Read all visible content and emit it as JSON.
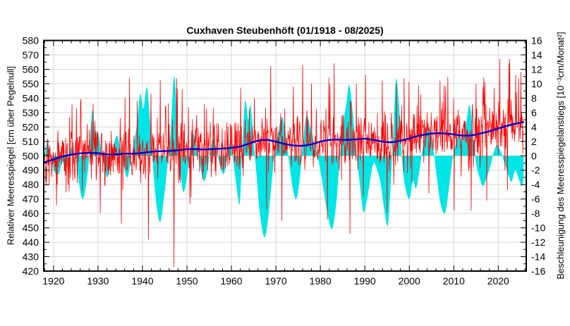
{
  "title": "Cuxhaven Steubenhöft (01/1918 - 08/2025)",
  "colors": {
    "background": "#ffffff",
    "text": "#000000",
    "frame": "#000000",
    "grid": "#d6d6d6",
    "monthly_sea_level": "#ff0000",
    "acceleration_fill": "#00e5e5",
    "trend_line": "#0000cc"
  },
  "chart_data": {
    "type": "line",
    "title": "Cuxhaven Steubenhöft (01/1918 - 08/2025)",
    "grid": true,
    "legend": "none",
    "x_axis": {
      "label": "",
      "range": [
        1917.8,
        2026.3
      ],
      "major_tick_values": [
        1920,
        1930,
        1940,
        1950,
        1960,
        1970,
        1980,
        1990,
        2000,
        2010,
        2020
      ],
      "major_tick_labels": [
        "1920",
        "1930",
        "1940",
        "1950",
        "1960",
        "1970",
        "1980",
        "1990",
        "2000",
        "2010",
        "2020"
      ],
      "minor_tick_step": 2
    },
    "y_left": {
      "label": "Relativer Meeresspiegel [cm über Pegelnull]",
      "range": [
        420,
        580
      ],
      "major_tick_step": 10,
      "minor_tick_step": 5,
      "major_tick_values": [
        420,
        430,
        440,
        450,
        460,
        470,
        480,
        490,
        500,
        510,
        520,
        530,
        540,
        550,
        560,
        570,
        580
      ],
      "major_tick_labels": [
        "420",
        "430",
        "440",
        "450",
        "460",
        "470",
        "480",
        "490",
        "500",
        "510",
        "520",
        "530",
        "540",
        "550",
        "560",
        "570",
        "580"
      ]
    },
    "y_right": {
      "label": "Beschleunigung des Meeresspiegelanstiegs [10⁻³cm/Monat²]",
      "range": [
        -16,
        16
      ],
      "major_tick_step": 2,
      "minor_tick_step": 1,
      "major_tick_values": [
        -16,
        -14,
        -12,
        -10,
        -8,
        -6,
        -4,
        -2,
        0,
        2,
        4,
        6,
        8,
        10,
        12,
        14,
        16
      ],
      "major_tick_labels": [
        "-16",
        "-14",
        "-12",
        "-10",
        "-8",
        "-6",
        "-4",
        "-2",
        "0",
        "2",
        "4",
        "6",
        "8",
        "10",
        "12",
        "14",
        "16"
      ]
    },
    "series": [
      {
        "name": "relative-sea-level-monthly",
        "description": "Monthly mean relative sea level 01/1918 - 08/2025 (noisy red curve)",
        "axis": "left",
        "style": "line",
        "color": "#ff0000",
        "stroke_width": 0.8,
        "generator": {
          "start_year": 1918,
          "months": 1292,
          "seed": 1947,
          "seasonal_amplitude": 4,
          "seasonal_peak_month": 0,
          "noise_sd": 8.5,
          "storm_high_prob": 0.07,
          "storm_high_scale": 13,
          "storm_low_prob": 0.06,
          "storm_low_scale": 12,
          "min": 422.5,
          "max": 567
        },
        "observed_extremes": [
          [
            1926.1,
            537
          ],
          [
            1928.9,
            536
          ],
          [
            1936.1,
            540
          ],
          [
            1938.8,
            538
          ],
          [
            1941.3,
            442
          ],
          [
            1941.9,
            543
          ],
          [
            1947.1,
            423
          ],
          [
            1948.9,
            546
          ],
          [
            1953.9,
            536
          ],
          [
            1955.9,
            533
          ],
          [
            1962.1,
            547
          ],
          [
            1965.2,
            540
          ],
          [
            1967.9,
            463
          ],
          [
            1971.3,
            455
          ],
          [
            1973.9,
            548
          ],
          [
            1976.0,
            563
          ],
          [
            1978.0,
            550
          ],
          [
            1981.9,
            554
          ],
          [
            1983.1,
            564
          ],
          [
            1986.7,
            446
          ],
          [
            1988.1,
            550
          ],
          [
            1990.2,
            556
          ],
          [
            1993.9,
            552
          ],
          [
            1995.0,
            461
          ],
          [
            1999.9,
            551
          ],
          [
            2002.1,
            549
          ],
          [
            2004.4,
            474
          ],
          [
            2006.9,
            552
          ],
          [
            2008.2,
            548
          ],
          [
            2010.1,
            462
          ],
          [
            2013.9,
            462
          ],
          [
            2015.0,
            550
          ],
          [
            2017.0,
            551
          ],
          [
            2019.1,
            547
          ],
          [
            2020.3,
            567
          ],
          [
            2022.4,
            564
          ],
          [
            2023.9,
            556
          ],
          [
            2025.1,
            558
          ]
        ]
      },
      {
        "name": "sea-level-rise-acceleration",
        "description": "Acceleration of sea level rise (cyan filled area, right axis, 10^-3 cm/month^2)",
        "axis": "right",
        "style": "area",
        "color": "#00e5e5",
        "baseline": 0,
        "points": [
          [
            1918.0,
            0.3
          ],
          [
            1918.6,
            1.9
          ],
          [
            1919.3,
            0.2
          ],
          [
            1920.2,
            -2.2
          ],
          [
            1921.2,
            -2.5
          ],
          [
            1922.0,
            -0.8
          ],
          [
            1922.8,
            -2.0
          ],
          [
            1923.6,
            0.4
          ],
          [
            1924.3,
            1.2
          ],
          [
            1925.0,
            -0.5
          ],
          [
            1925.8,
            -4.0
          ],
          [
            1926.6,
            -6.0
          ],
          [
            1927.5,
            -3.2
          ],
          [
            1928.1,
            0.5
          ],
          [
            1928.7,
            6.4
          ],
          [
            1929.4,
            2.5
          ],
          [
            1930.0,
            3.3
          ],
          [
            1930.7,
            1.0
          ],
          [
            1931.4,
            -1.5
          ],
          [
            1932.1,
            -3.0
          ],
          [
            1932.9,
            -1.0
          ],
          [
            1933.6,
            1.5
          ],
          [
            1934.3,
            2.8
          ],
          [
            1935.1,
            0.8
          ],
          [
            1935.9,
            -1.8
          ],
          [
            1936.6,
            -3.0
          ],
          [
            1937.3,
            -1.0
          ],
          [
            1938.0,
            1.5
          ],
          [
            1938.8,
            4.5
          ],
          [
            1939.5,
            8.6
          ],
          [
            1940.2,
            6.5
          ],
          [
            1941.0,
            9.5
          ],
          [
            1941.8,
            4.0
          ],
          [
            1942.5,
            -2.5
          ],
          [
            1943.2,
            -7.0
          ],
          [
            1944.0,
            -9.2
          ],
          [
            1944.8,
            -6.0
          ],
          [
            1945.5,
            -2.0
          ],
          [
            1946.3,
            3.0
          ],
          [
            1947.1,
            11.0
          ],
          [
            1947.8,
            5.0
          ],
          [
            1948.5,
            -2.0
          ],
          [
            1949.2,
            -5.0
          ],
          [
            1950.0,
            -3.0
          ],
          [
            1950.8,
            1.0
          ],
          [
            1951.5,
            3.0
          ],
          [
            1952.3,
            1.0
          ],
          [
            1953.0,
            -1.5
          ],
          [
            1953.8,
            -3.5
          ],
          [
            1954.6,
            -2.0
          ],
          [
            1955.3,
            1.0
          ],
          [
            1956.0,
            2.5
          ],
          [
            1956.8,
            0.5
          ],
          [
            1957.5,
            -1.5
          ],
          [
            1958.3,
            -2.5
          ],
          [
            1959.0,
            -0.5
          ],
          [
            1959.8,
            2.0
          ],
          [
            1960.5,
            -1.0
          ],
          [
            1961.3,
            -5.0
          ],
          [
            1961.9,
            -6.4
          ],
          [
            1962.5,
            2.0
          ],
          [
            1963.1,
            7.7
          ],
          [
            1963.8,
            5.0
          ],
          [
            1964.3,
            7.0
          ],
          [
            1965.0,
            2.0
          ],
          [
            1965.7,
            -3.0
          ],
          [
            1966.4,
            -8.0
          ],
          [
            1967.4,
            -11.3
          ],
          [
            1968.2,
            -9.0
          ],
          [
            1969.0,
            -4.0
          ],
          [
            1969.8,
            1.0
          ],
          [
            1970.6,
            3.5
          ],
          [
            1971.4,
            5.4
          ],
          [
            1972.2,
            3.0
          ],
          [
            1973.0,
            -1.0
          ],
          [
            1973.8,
            -4.5
          ],
          [
            1974.6,
            -6.0
          ],
          [
            1975.4,
            -3.0
          ],
          [
            1976.1,
            2.0
          ],
          [
            1976.9,
            5.6
          ],
          [
            1977.7,
            4.0
          ],
          [
            1978.5,
            2.0
          ],
          [
            1979.2,
            0.5
          ],
          [
            1980.0,
            -2.0
          ],
          [
            1980.8,
            -5.0
          ],
          [
            1981.6,
            -8.0
          ],
          [
            1982.6,
            -10.2
          ],
          [
            1983.5,
            -7.0
          ],
          [
            1984.3,
            -1.0
          ],
          [
            1985.0,
            4.0
          ],
          [
            1985.8,
            7.0
          ],
          [
            1986.5,
            9.8
          ],
          [
            1987.3,
            6.0
          ],
          [
            1988.0,
            1.0
          ],
          [
            1988.9,
            -4.0
          ],
          [
            1989.7,
            -7.8
          ],
          [
            1990.5,
            -6.0
          ],
          [
            1991.3,
            -3.0
          ],
          [
            1992.0,
            -1.0
          ],
          [
            1992.8,
            -2.0
          ],
          [
            1993.6,
            -4.0
          ],
          [
            1994.5,
            -8.0
          ],
          [
            1995.2,
            -9.6
          ],
          [
            1995.8,
            -4.0
          ],
          [
            1996.4,
            3.0
          ],
          [
            1997.0,
            10.6
          ],
          [
            1997.7,
            7.0
          ],
          [
            1998.3,
            0.0
          ],
          [
            1999.0,
            -4.0
          ],
          [
            2000.0,
            -6.0
          ],
          [
            2000.8,
            -3.5
          ],
          [
            2001.5,
            -4.5
          ],
          [
            2002.3,
            -2.0
          ],
          [
            2003.0,
            1.0
          ],
          [
            2003.8,
            3.0
          ],
          [
            2004.6,
            3.8
          ],
          [
            2005.4,
            1.0
          ],
          [
            2006.2,
            -3.0
          ],
          [
            2007.0,
            -6.5
          ],
          [
            2008.0,
            -8.0
          ],
          [
            2008.8,
            -5.0
          ],
          [
            2009.6,
            -1.0
          ],
          [
            2010.4,
            1.5
          ],
          [
            2011.2,
            3.0
          ],
          [
            2012.0,
            2.0
          ],
          [
            2012.9,
            5.0
          ],
          [
            2013.6,
            7.0
          ],
          [
            2014.3,
            3.0
          ],
          [
            2015.0,
            -1.0
          ],
          [
            2015.8,
            -3.0
          ],
          [
            2016.6,
            -4.2
          ],
          [
            2017.4,
            -3.0
          ],
          [
            2018.2,
            -1.5
          ],
          [
            2019.0,
            0.5
          ],
          [
            2019.8,
            1.5
          ],
          [
            2020.6,
            0.5
          ],
          [
            2021.4,
            -1.0
          ],
          [
            2022.2,
            -2.5
          ],
          [
            2023.0,
            -3.6
          ],
          [
            2023.8,
            -2.0
          ],
          [
            2024.5,
            -3.0
          ],
          [
            2025.3,
            -4.2
          ],
          [
            2025.7,
            -3.0
          ]
        ]
      },
      {
        "name": "smoothed-sea-level-trend",
        "description": "Smoothed long-term sea level trend (blue curve, left axis)",
        "axis": "left",
        "style": "line",
        "color": "#0000cc",
        "stroke_width": 2.4,
        "points": [
          [
            1918,
            495.5
          ],
          [
            1920,
            497.5
          ],
          [
            1922,
            499.5
          ],
          [
            1924,
            500.8
          ],
          [
            1926,
            501.7
          ],
          [
            1928,
            502.0
          ],
          [
            1930,
            501.8
          ],
          [
            1932,
            501.0
          ],
          [
            1934,
            501.0
          ],
          [
            1936,
            501.5
          ],
          [
            1938,
            501.5
          ],
          [
            1940,
            502.0
          ],
          [
            1942,
            502.8
          ],
          [
            1944,
            503.2
          ],
          [
            1946,
            503.4
          ],
          [
            1948,
            503.8
          ],
          [
            1950,
            504.5
          ],
          [
            1952,
            504.6
          ],
          [
            1954,
            504.4
          ],
          [
            1956,
            504.6
          ],
          [
            1958,
            505.0
          ],
          [
            1960,
            505.5
          ],
          [
            1962,
            506.5
          ],
          [
            1964,
            508.5
          ],
          [
            1966,
            510.5
          ],
          [
            1968,
            511.0
          ],
          [
            1970,
            509.8
          ],
          [
            1972,
            508.2
          ],
          [
            1974,
            507.2
          ],
          [
            1976,
            507.0
          ],
          [
            1978,
            508.0
          ],
          [
            1980,
            509.8
          ],
          [
            1982,
            511.0
          ],
          [
            1984,
            511.2
          ],
          [
            1986,
            511.0
          ],
          [
            1988,
            511.4
          ],
          [
            1990,
            511.8
          ],
          [
            1992,
            511.0
          ],
          [
            1994,
            509.8
          ],
          [
            1996,
            509.4
          ],
          [
            1998,
            510.5
          ],
          [
            2000,
            512.0
          ],
          [
            2002,
            513.8
          ],
          [
            2004,
            515.0
          ],
          [
            2006,
            515.6
          ],
          [
            2008,
            515.5
          ],
          [
            2010,
            514.8
          ],
          [
            2012,
            514.0
          ],
          [
            2014,
            514.2
          ],
          [
            2016,
            515.5
          ],
          [
            2018,
            517.0
          ],
          [
            2020,
            519.0
          ],
          [
            2022,
            520.8
          ],
          [
            2024,
            522.3
          ],
          [
            2025.7,
            523.4
          ]
        ]
      }
    ]
  }
}
